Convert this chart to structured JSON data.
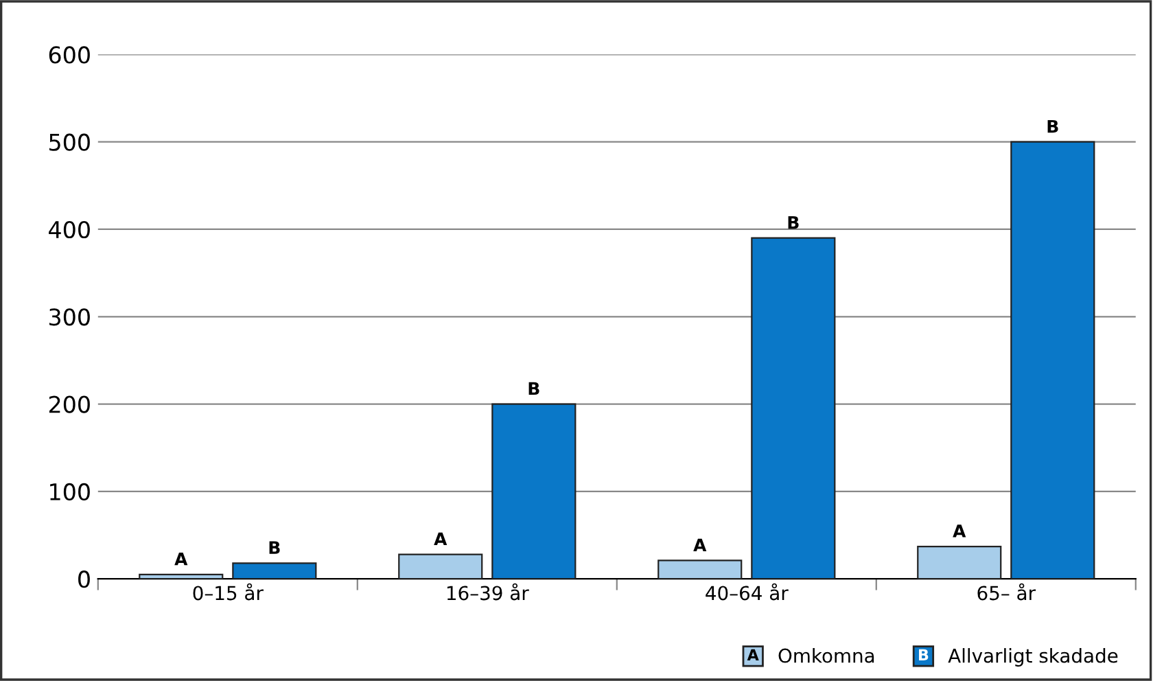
{
  "chart_data": {
    "type": "bar",
    "categories": [
      "0–15 år",
      "16–39 år",
      "40–64 år",
      "65– år"
    ],
    "series": [
      {
        "name": "Omkomna",
        "color": "#a7cdea",
        "values": [
          5,
          28,
          21,
          37
        ],
        "value_labels": [
          "A",
          "A",
          "A",
          "A"
        ]
      },
      {
        "name": "Allvarligt skadade",
        "color": "#0a78c8",
        "values": [
          18,
          200,
          390,
          500
        ],
        "value_labels": [
          "B",
          "B",
          "B",
          "B"
        ]
      }
    ],
    "ylim": [
      0,
      600
    ],
    "yticks": [
      0,
      100,
      200,
      300,
      400,
      500,
      600
    ],
    "grid": "y",
    "legend": "bottom right"
  }
}
